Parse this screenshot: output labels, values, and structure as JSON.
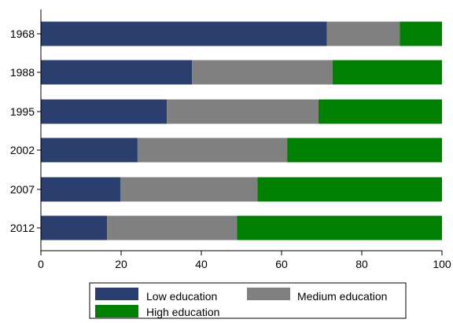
{
  "chart_data": {
    "type": "bar",
    "orientation": "horizontal",
    "stacked": true,
    "categories": [
      "1968",
      "1988",
      "1995",
      "2002",
      "2007",
      "2012"
    ],
    "series": [
      {
        "name": "Low education",
        "color": "#2a3f6e",
        "values": [
          71.3,
          37.7,
          31.4,
          24.1,
          19.8,
          16.5
        ]
      },
      {
        "name": "Medium education",
        "color": "#808080",
        "values": [
          18.2,
          35.0,
          37.8,
          37.3,
          34.2,
          32.4
        ]
      },
      {
        "name": "High education",
        "color": "#008000",
        "values": [
          10.5,
          27.3,
          30.8,
          38.6,
          46.0,
          51.1
        ]
      }
    ],
    "xlim": [
      0,
      100
    ],
    "xticks": [
      "0",
      "20",
      "40",
      "60",
      "80",
      "100"
    ],
    "grid": false,
    "legend_position": "bottom"
  }
}
